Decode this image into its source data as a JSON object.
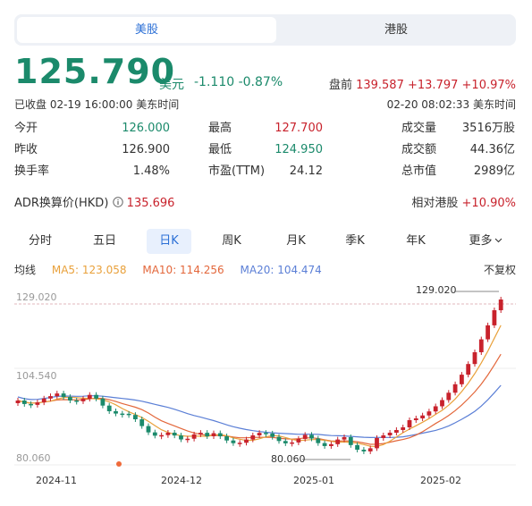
{
  "tabs": {
    "us": "美股",
    "hk": "港股"
  },
  "quote": {
    "price": "125.790",
    "currency": "美元",
    "change": "-1.110",
    "change_pct": "-0.87%",
    "premarket_label": "盘前",
    "premarket_price": "139.587",
    "premarket_change": "+13.797",
    "premarket_pct": "+10.97%",
    "status": "已收盘 02-19 16:00:00 美东时间",
    "pre_time": "02-20 08:02:33 美东时间"
  },
  "stats": [
    {
      "k": "今开",
      "v": "126.000",
      "c": "green"
    },
    {
      "k": "最高",
      "v": "127.700",
      "c": "red"
    },
    {
      "k": "成交量",
      "v": "3516万股",
      "c": ""
    },
    {
      "k": "昨收",
      "v": "126.900",
      "c": ""
    },
    {
      "k": "最低",
      "v": "124.950",
      "c": "green"
    },
    {
      "k": "成交额",
      "v": "44.36亿",
      "c": ""
    },
    {
      "k": "换手率",
      "v": "1.48%",
      "c": ""
    },
    {
      "k": "市盈(TTM)",
      "v": "24.12",
      "c": ""
    },
    {
      "k": "总市值",
      "v": "2989亿",
      "c": ""
    }
  ],
  "adr": {
    "label": "ADR换算价(HKD)",
    "value": "135.696",
    "rel_label": "相对港股",
    "rel_value": "+10.90%"
  },
  "periods": [
    "分时",
    "五日",
    "日K",
    "周K",
    "月K",
    "季K",
    "年K",
    "更多"
  ],
  "ma": {
    "title": "均线",
    "ma5": "MA5: 123.058",
    "ma10": "MA10: 114.256",
    "ma20": "MA20: 104.474",
    "adjust": "不复权"
  },
  "chart_data": {
    "type": "candlestick",
    "y_ticks": [
      "129.020",
      "104.540",
      "80.060"
    ],
    "x_ticks": [
      "2024-11",
      "2024-12",
      "2025-01",
      "2025-02"
    ],
    "max_label": "129.020",
    "min_label": "80.060",
    "colors": {
      "up": "#c8222c",
      "down": "#1b8a6b",
      "ma5": "#e9a13b",
      "ma10": "#e3673b",
      "ma20": "#5b7fd6"
    }
  }
}
